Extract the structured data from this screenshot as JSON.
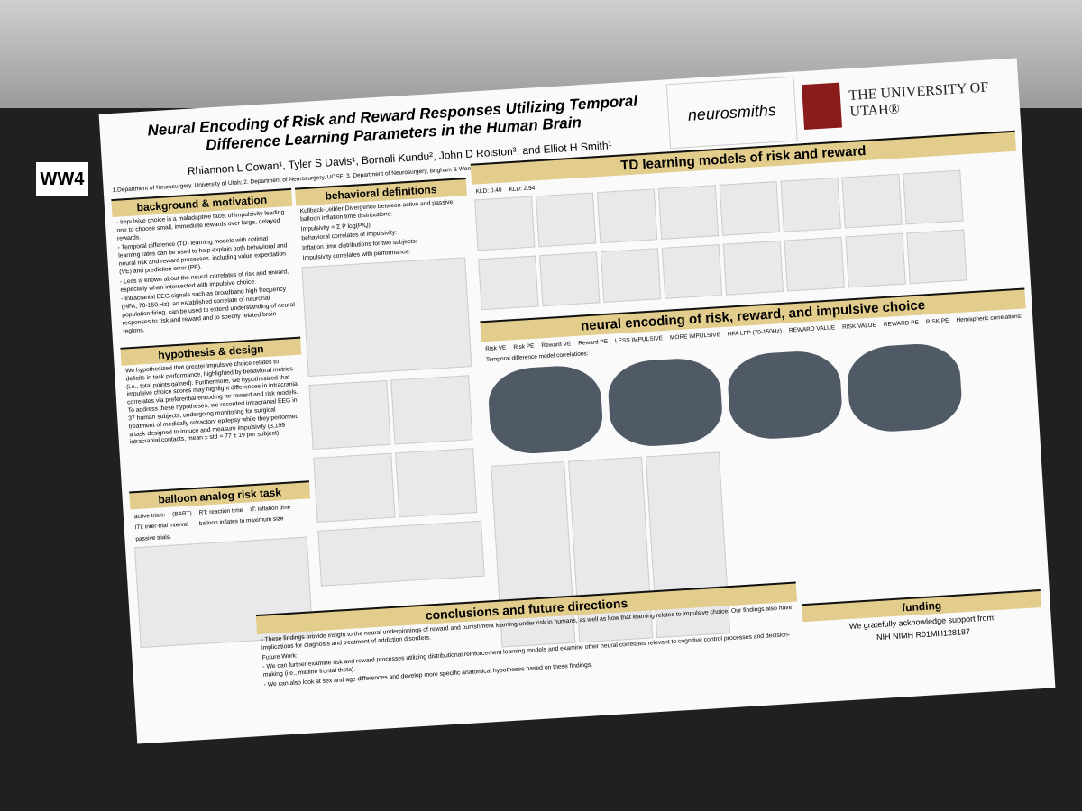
{
  "booth": "WW4",
  "header": {
    "title": "Neural Encoding of Risk and Reward Responses Utilizing Temporal Difference Learning Parameters in the Human Brain",
    "authors": "Rhiannon L Cowan¹, Tyler S Davis¹, Bornali Kundu², John D Rolston³, and Elliot H Smith¹",
    "affiliations": "1.Department of Neurosurgery, University of Utah; 2. Department of Neurosurgery, UCSF; 3. Department of Neurosurgery, Brigham & Women's Hospital",
    "logos": [
      "neurosmiths",
      "THE UNIVERSITY OF UTAH®"
    ]
  },
  "sections": [
    {
      "heading": "background & motivation",
      "items": [
        "- Impulsive choice is a maladaptive facet of impulsivity leading one to choose small, immediate rewards over large, delayed rewards.",
        "- Temporal difference (TD) learning models with optimal learning rates can be used to help explain both behavioral and neural risk and reward processes, including value expectation (VE) and prediction error (PE).",
        "- Less is known about the neural correlates of risk and reward, especially when intersected with impulsive choice.",
        "- Intracranial EEG signals such as broadband high frequency (HFA; 70-150 Hz), an established correlate of neuronal population firing, can be used to extend understanding of neural responses to risk and reward and to specify related brain regions."
      ]
    },
    {
      "heading": "hypothesis & design",
      "items": [
        "We hypothesized that greater impulsive choice relates to deficits in task performance, highlighted by behavioral metrics (i.e., total points gained). Furthermore, we hypothesized that impulsive choice scores may highlight differences in intracranial correlates via preferential encoding for reward and risk models. To address these hypotheses, we recorded intracranial EEG in 37 human subjects, undergoing monitoring for surgical treatment of medically refractory epilepsy while they performed a task designed to induce and measure impulsivity (3,199 intracranial contacts, mean ± std = 77 ± 19 per subject)."
      ]
    },
    {
      "heading": "balloon analog risk task",
      "items": [
        "active trials:",
        "(BART)",
        "RT: reaction time",
        "IT: inflation time",
        "ITI: inter-trial interval",
        "- balloon inflates to maximum size",
        "passive trials:"
      ]
    },
    {
      "heading": "behavioral definitions",
      "items": [
        "Kullback-Leibler Divergence between active and passive balloon inflation time distributions:",
        "Impulsivity = Σ P log(P/Q)",
        "behavioral correlates of impulsivity:",
        "Inflation time distributions for two subjects:",
        "Impulsivity correlates with performance:"
      ]
    },
    {
      "heading": "TD learning models of risk and reward",
      "items": [
        "KLD: 0.40",
        "KLD: 2.54"
      ]
    },
    {
      "heading": "neural encoding of risk, reward, and impulsive choice",
      "items": [
        "Risk VE",
        "Risk PE",
        "Reward VE",
        "Reward PE",
        "LESS IMPULSIVE",
        "MORE IMPULSIVE",
        "HFA LFP (70-150Hz)",
        "REWARD VALUE",
        "RISK VALUE",
        "REWARD PE",
        "RISK PE",
        "Hemispheric correlations:",
        "Temporal difference model correlations:"
      ]
    },
    {
      "heading": "conclusions and future directions",
      "items": [
        "- These findings provide insight to the neural underpinnings of reward and punishment learning under risk in humans, as well as how that learning relates to impulsive choice. Our findings also have implications for diagnosis and treatment of addiction disorders.",
        "Future Work:",
        "- We can further examine risk and reward processes utilizing distributional reinforcement learning models and examine other neural correlates relevant to cognitive control processes and decision-making (i.e., midline frontal theta).",
        "- We can also look at sex and age differences and develop more specific anatomical hypotheses based on these findings."
      ]
    },
    {
      "heading": "funding",
      "items": [
        "We gratefully acknowledge support from:",
        "NIH NIMH R01MH128187"
      ]
    }
  ]
}
